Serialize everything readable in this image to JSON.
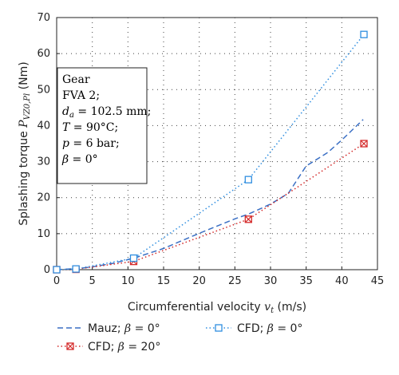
{
  "chart_data": {
    "type": "line",
    "xlabel": "Circumferential velocity v_t (m/s)",
    "ylabel": "Splashing torque P_VZ0,Pl (Nm)",
    "xlim": [
      0,
      45
    ],
    "ylim": [
      0,
      70
    ],
    "x_ticks": [
      "0",
      "5",
      "10",
      "15",
      "20",
      "25",
      "30",
      "35",
      "40",
      "45"
    ],
    "y_ticks": [
      "0",
      "10",
      "20",
      "30",
      "40",
      "50",
      "60",
      "70"
    ],
    "grid": true,
    "legend_position": "bottom",
    "info_box": {
      "lines": [
        "Gear",
        "FVA 2;",
        "d_a = 102.5 mm;",
        "T = 90°C;",
        "p = 6 bar;",
        "β = 0°"
      ]
    },
    "series": [
      {
        "name": "Mauz; β = 0°",
        "style": "dashed",
        "marker": "none",
        "color": "#3a6fc4",
        "x": [
          0,
          3,
          5,
          8,
          11,
          15,
          20,
          25,
          27,
          30,
          32.5,
          35,
          38,
          40,
          43
        ],
        "y": [
          0,
          0.3,
          0.8,
          1.8,
          3.3,
          5.9,
          10.1,
          14.1,
          15.5,
          18.2,
          21.2,
          28.8,
          32.5,
          36,
          41.7
        ]
      },
      {
        "name": "CFD; β = 20°",
        "style": "dotted",
        "marker": "square-x",
        "color": "#d42a2a",
        "x": [
          0,
          2.7,
          10.8,
          26.9,
          43.1
        ],
        "y": [
          0,
          0.1,
          2.3,
          14.0,
          35.0
        ]
      },
      {
        "name": "CFD; β = 0°",
        "style": "dotted",
        "marker": "square",
        "color": "#2f8ee0",
        "x": [
          0,
          2.7,
          10.8,
          26.9,
          43.1
        ],
        "y": [
          0,
          0.2,
          3.2,
          25.0,
          65.3
        ]
      }
    ]
  }
}
